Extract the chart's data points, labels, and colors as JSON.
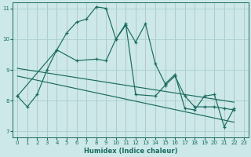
{
  "xlabel": "Humidex (Indice chaleur)",
  "bg_color": "#cce8e8",
  "line_color": "#1a6b60",
  "grid_color": "#aed0d0",
  "xlim": [
    -0.5,
    23.5
  ],
  "ylim": [
    6.8,
    11.2
  ],
  "yticks": [
    7,
    8,
    9,
    10,
    11
  ],
  "xticks": [
    0,
    1,
    2,
    3,
    4,
    5,
    6,
    7,
    8,
    9,
    10,
    11,
    12,
    13,
    14,
    15,
    16,
    17,
    18,
    19,
    20,
    21,
    22,
    23
  ],
  "series1_x": [
    0,
    1,
    2,
    3,
    4,
    5,
    6,
    7,
    8,
    9,
    10,
    11,
    12,
    13,
    14,
    15,
    16,
    17,
    18,
    19,
    20,
    21,
    22
  ],
  "series1_y": [
    8.15,
    7.8,
    8.2,
    9.0,
    9.65,
    10.2,
    10.55,
    10.65,
    11.05,
    11.0,
    10.0,
    10.45,
    9.9,
    10.5,
    9.2,
    8.55,
    8.85,
    7.75,
    7.7,
    8.15,
    8.2,
    7.15,
    7.75
  ],
  "trend1_x": [
    0,
    22
  ],
  "trend1_y": [
    9.05,
    7.95
  ],
  "trend2_x": [
    0,
    22
  ],
  "trend2_y": [
    8.8,
    7.3
  ],
  "series2_x": [
    0,
    4,
    6,
    8,
    9,
    10,
    11,
    12,
    14,
    15,
    16,
    17,
    18,
    19,
    20,
    21,
    22
  ],
  "series2_y": [
    8.15,
    9.65,
    9.3,
    9.35,
    9.3,
    10.0,
    10.5,
    8.2,
    8.15,
    8.5,
    8.8,
    8.15,
    7.8,
    7.8,
    7.8,
    7.75,
    7.7
  ]
}
